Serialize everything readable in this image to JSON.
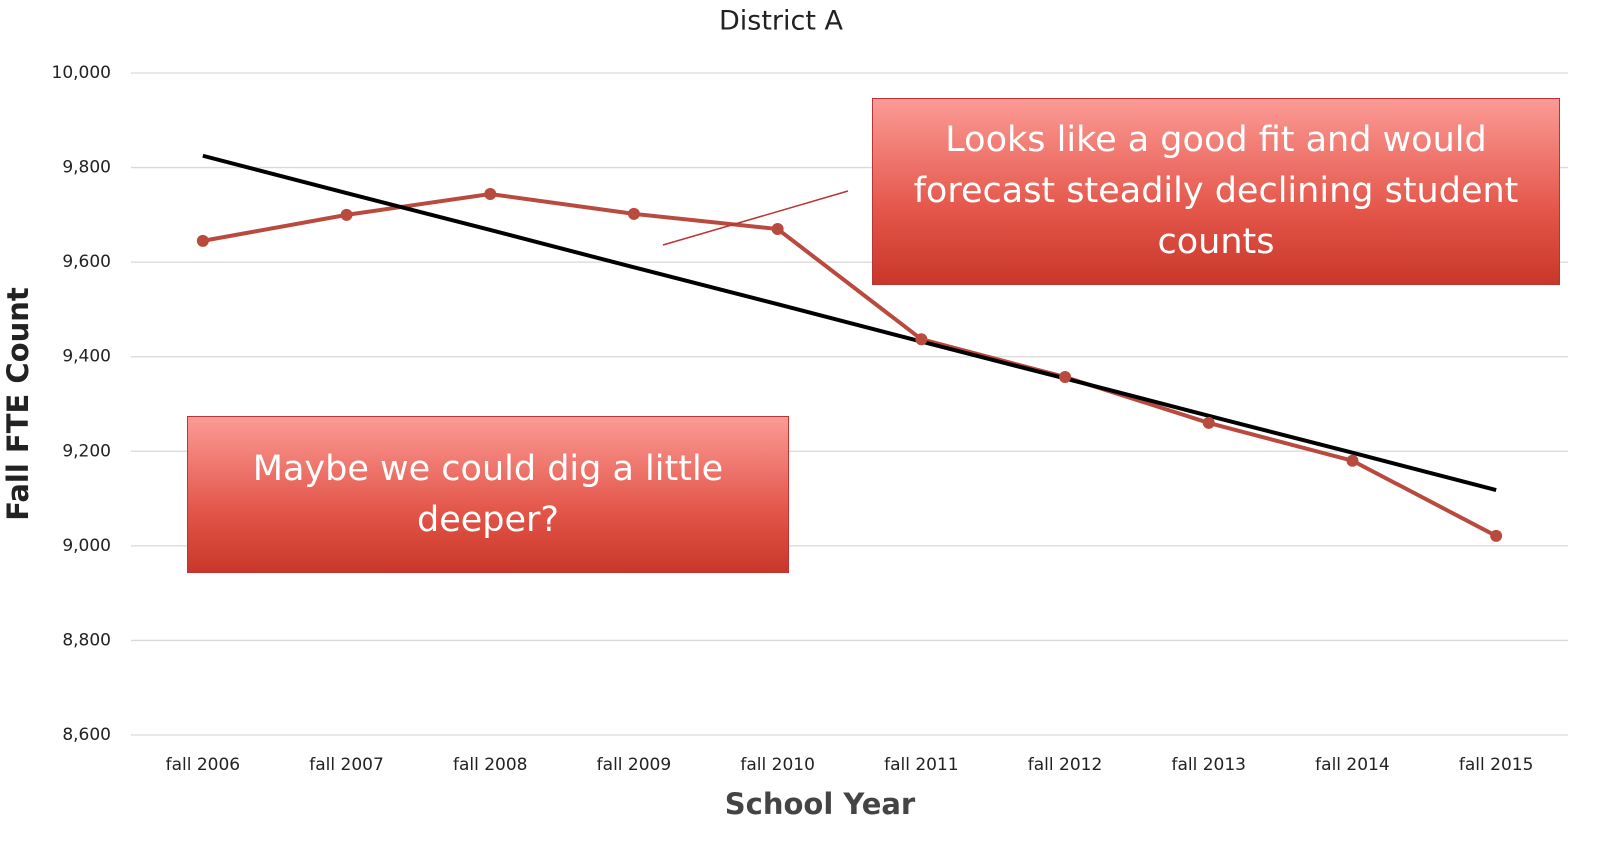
{
  "chart_data": {
    "type": "line",
    "title": "District A",
    "x_label": "School Year",
    "y_label": "Fall FTE Count",
    "categories": [
      "fall 2006",
      "fall 2007",
      "fall 2008",
      "fall 2009",
      "fall 2010",
      "fall 2011",
      "fall 2012",
      "fall 2013",
      "fall 2014",
      "fall 2015"
    ],
    "values": [
      9645,
      9700,
      9744,
      9702,
      9670,
      9437,
      9357,
      9260,
      9180,
      9021
    ],
    "color": "#b94a3e",
    "trendline": {
      "color": "#000000",
      "values": [
        9825,
        9746,
        9668,
        9589,
        9511,
        9432,
        9354,
        9275,
        9197,
        9118
      ]
    },
    "ylim": [
      8600,
      10000
    ],
    "yticks": [
      {
        "value": 8600,
        "label": "8,600"
      },
      {
        "value": 8800,
        "label": "8,800"
      },
      {
        "value": 9000,
        "label": "9,000"
      },
      {
        "value": 9200,
        "label": "9,200"
      },
      {
        "value": 9400,
        "label": "9,400"
      },
      {
        "value": 9600,
        "label": "9,600"
      },
      {
        "value": 9800,
        "label": "9,800"
      },
      {
        "value": 10000,
        "label": "10,000"
      }
    ],
    "grid": true,
    "annotations": [
      "Looks like a good fit and would forecast steadily declining student counts",
      "Maybe we could dig a little deeper?"
    ]
  }
}
